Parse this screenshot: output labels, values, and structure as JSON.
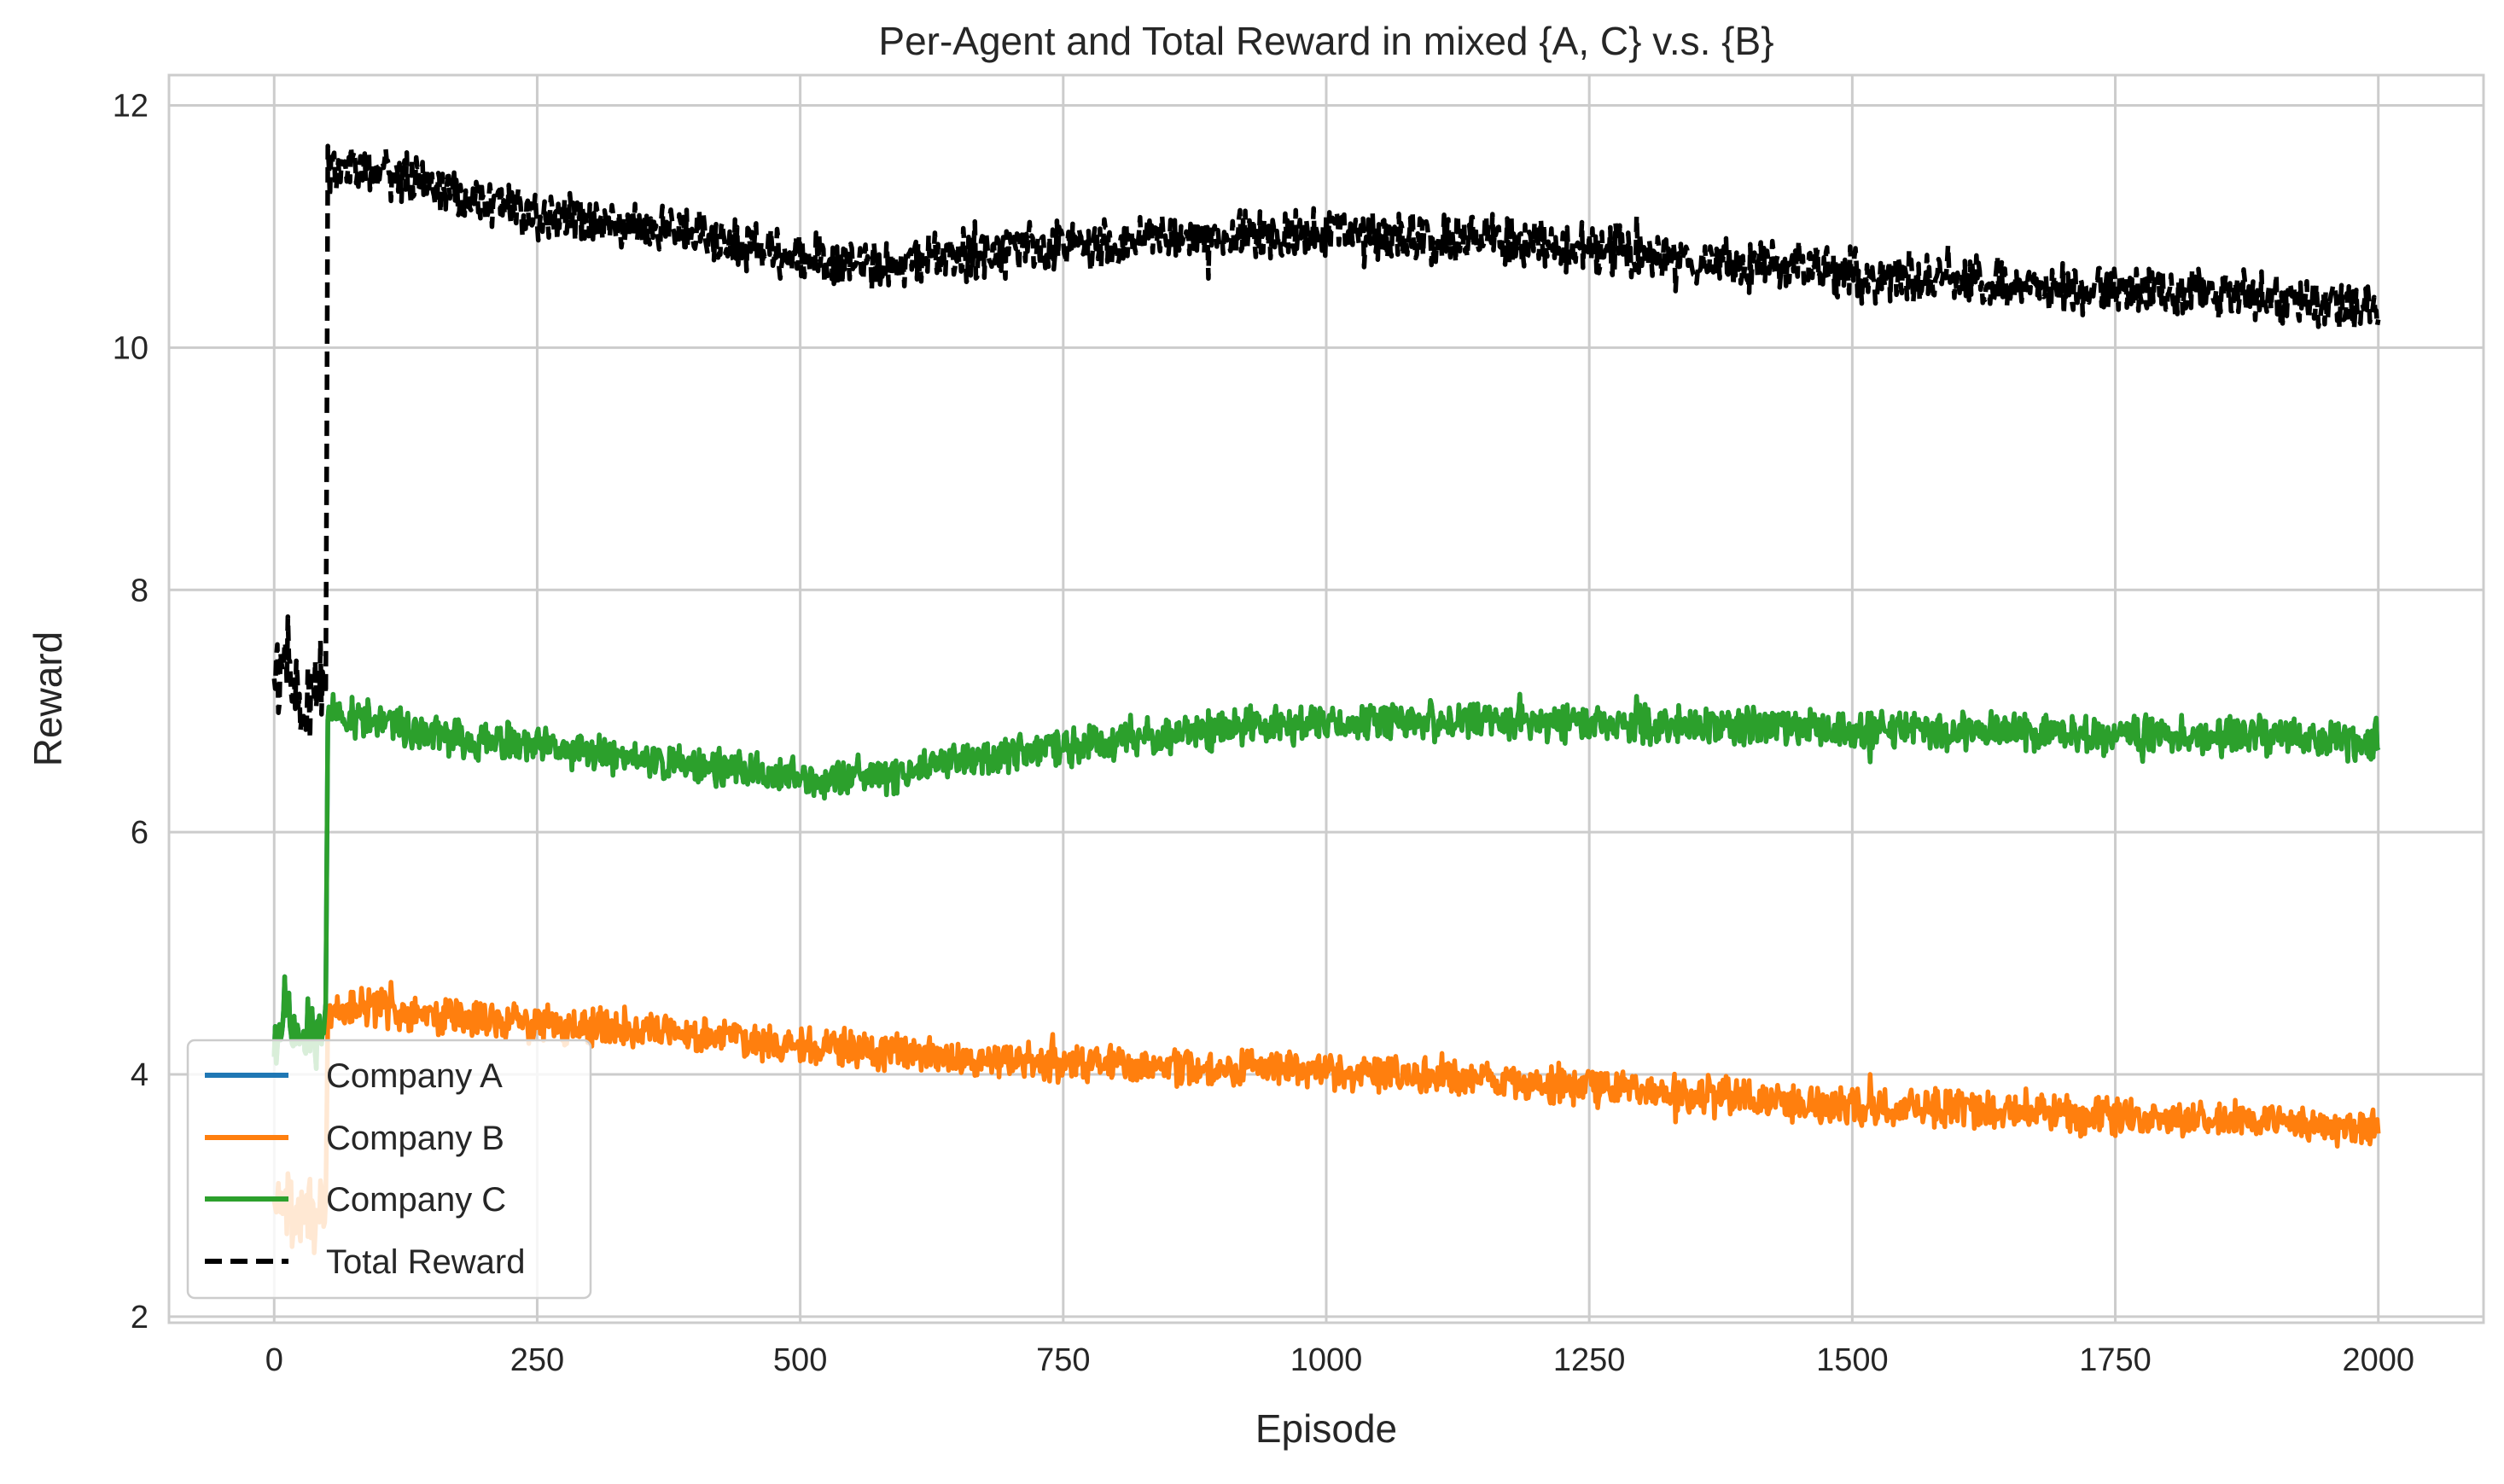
{
  "chart_data": {
    "type": "line",
    "title": "Per-Agent and Total Reward in mixed {A, C} v.s. {B}",
    "xlabel": "Episode",
    "ylabel": "Reward",
    "xlim": [
      -100,
      2100
    ],
    "ylim": [
      1.95,
      12.25
    ],
    "x_ticks": [
      0,
      250,
      500,
      750,
      1000,
      1250,
      1500,
      1750,
      2000
    ],
    "x_tick_labels": [
      "0",
      "250",
      "500",
      "750",
      "1000",
      "1250",
      "1500",
      "1750",
      "2000"
    ],
    "y_ticks": [
      2,
      4,
      6,
      8,
      10,
      12
    ],
    "y_tick_labels": [
      "2",
      "4",
      "6",
      "8",
      "10",
      "12"
    ],
    "grid": true,
    "legend_position": "lower-left",
    "series": [
      {
        "name": "Company A",
        "color": "#1f77b4",
        "style": "solid",
        "note": "hidden beneath Company C",
        "x": [
          0,
          10,
          20,
          30,
          40,
          49,
          50,
          51,
          75,
          100,
          150,
          200,
          250,
          300,
          350,
          400,
          450,
          500,
          550,
          600,
          650,
          700,
          750,
          800,
          850,
          900,
          950,
          1000,
          1050,
          1100,
          1150,
          1200,
          1250,
          1300,
          1350,
          1400,
          1450,
          1500,
          1550,
          1600,
          1650,
          1700,
          1750,
          1800,
          1850,
          1900,
          1950,
          2000
        ],
        "y": [
          4.3,
          4.5,
          4.4,
          4.3,
          4.4,
          4.4,
          5.7,
          7.0,
          6.95,
          6.9,
          6.8,
          6.75,
          6.7,
          6.65,
          6.6,
          6.55,
          6.5,
          6.45,
          6.45,
          6.5,
          6.6,
          6.65,
          6.7,
          6.75,
          6.8,
          6.85,
          6.88,
          6.9,
          6.9,
          6.92,
          6.92,
          6.9,
          6.9,
          6.88,
          6.88,
          6.87,
          6.86,
          6.85,
          6.85,
          6.84,
          6.83,
          6.82,
          6.8,
          6.8,
          6.8,
          6.78,
          6.77,
          6.75
        ]
      },
      {
        "name": "Company B",
        "color": "#ff7f0e",
        "style": "solid",
        "x": [
          0,
          10,
          20,
          30,
          40,
          49,
          50,
          51,
          75,
          100,
          150,
          200,
          250,
          300,
          350,
          400,
          450,
          500,
          550,
          600,
          650,
          700,
          750,
          800,
          850,
          900,
          950,
          1000,
          1050,
          1100,
          1150,
          1200,
          1250,
          1300,
          1350,
          1400,
          1450,
          1500,
          1550,
          1600,
          1650,
          1700,
          1750,
          1800,
          1850,
          1900,
          1950,
          2000
        ],
        "y": [
          2.9,
          3.0,
          2.8,
          2.9,
          2.9,
          2.8,
          3.6,
          4.5,
          4.55,
          4.55,
          4.5,
          4.45,
          4.42,
          4.4,
          4.37,
          4.33,
          4.3,
          4.25,
          4.2,
          4.17,
          4.13,
          4.1,
          4.1,
          4.08,
          4.07,
          4.05,
          4.05,
          4.03,
          4.0,
          3.97,
          3.95,
          3.92,
          3.9,
          3.87,
          3.83,
          3.8,
          3.77,
          3.75,
          3.73,
          3.72,
          3.7,
          3.67,
          3.65,
          3.63,
          3.62,
          3.6,
          3.58,
          3.55
        ]
      },
      {
        "name": "Company C",
        "color": "#2ca02c",
        "style": "solid",
        "x": [
          0,
          10,
          20,
          30,
          40,
          49,
          50,
          51,
          75,
          100,
          150,
          200,
          250,
          300,
          350,
          400,
          450,
          500,
          550,
          600,
          650,
          700,
          750,
          800,
          850,
          900,
          950,
          1000,
          1050,
          1100,
          1150,
          1200,
          1250,
          1300,
          1350,
          1400,
          1450,
          1500,
          1550,
          1600,
          1650,
          1700,
          1750,
          1800,
          1850,
          1900,
          1950,
          2000
        ],
        "y": [
          4.3,
          4.5,
          4.4,
          4.3,
          4.4,
          4.4,
          5.7,
          7.0,
          6.95,
          6.9,
          6.8,
          6.75,
          6.7,
          6.65,
          6.6,
          6.55,
          6.5,
          6.45,
          6.45,
          6.5,
          6.6,
          6.65,
          6.7,
          6.75,
          6.8,
          6.85,
          6.88,
          6.9,
          6.9,
          6.92,
          6.92,
          6.9,
          6.9,
          6.88,
          6.88,
          6.87,
          6.86,
          6.85,
          6.85,
          6.84,
          6.83,
          6.82,
          6.8,
          6.8,
          6.8,
          6.78,
          6.77,
          6.75
        ]
      },
      {
        "name": "Total Reward",
        "color": "#000000",
        "style": "dashed",
        "x": [
          0,
          10,
          20,
          30,
          40,
          49,
          50,
          51,
          75,
          100,
          150,
          200,
          250,
          300,
          350,
          400,
          450,
          500,
          550,
          600,
          650,
          700,
          750,
          800,
          850,
          900,
          950,
          1000,
          1050,
          1100,
          1150,
          1200,
          1250,
          1300,
          1350,
          1400,
          1450,
          1500,
          1550,
          1600,
          1650,
          1700,
          1750,
          1800,
          1850,
          1900,
          1950,
          2000
        ],
        "y": [
          7.2,
          7.5,
          7.3,
          7.0,
          7.2,
          7.2,
          9.3,
          11.45,
          11.5,
          11.45,
          11.35,
          11.2,
          11.1,
          11.05,
          11.0,
          10.95,
          10.85,
          10.75,
          10.7,
          10.7,
          10.75,
          10.8,
          10.85,
          10.85,
          10.9,
          10.9,
          10.92,
          10.95,
          10.93,
          10.9,
          10.9,
          10.85,
          10.82,
          10.78,
          10.72,
          10.68,
          10.65,
          10.6,
          10.58,
          10.56,
          10.52,
          10.5,
          10.48,
          10.45,
          10.42,
          10.4,
          10.37,
          10.3
        ]
      }
    ],
    "noise": {
      "Company A": 0.12,
      "Company B": 0.12,
      "Company C": 0.12,
      "Total Reward": 0.16,
      "early_episodes_extra": 0.22
    }
  }
}
